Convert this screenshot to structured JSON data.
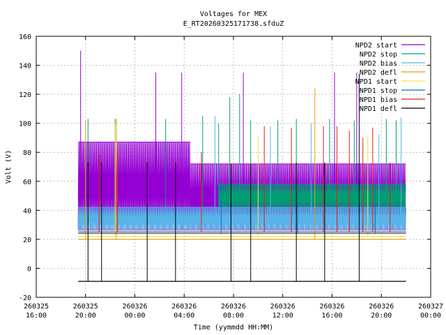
{
  "chart_data": {
    "type": "line",
    "title": "Voltages for MEX",
    "subtitle": "E_RT20260325171738.sfduZ",
    "xlabel": "Time (yymmdd HH:MM)",
    "ylabel": "Volt (V)",
    "ylim": [
      -20,
      160
    ],
    "xlim_hours": [
      16,
      48
    ],
    "grid": true,
    "legend_position": "top-right",
    "y_ticks": [
      "-20",
      "0",
      "20",
      "40",
      "60",
      "80",
      "100",
      "120",
      "140",
      "160"
    ],
    "x_ticks": [
      {
        "date": "260325",
        "time": "16:00"
      },
      {
        "date": "260325",
        "time": "20:00"
      },
      {
        "date": "260326",
        "time": "00:00"
      },
      {
        "date": "260326",
        "time": "04:00"
      },
      {
        "date": "260326",
        "time": "08:00"
      },
      {
        "date": "260326",
        "time": "12:00"
      },
      {
        "date": "260326",
        "time": "16:00"
      },
      {
        "date": "260326",
        "time": "20:00"
      },
      {
        "date": "260327",
        "time": "00:00"
      }
    ],
    "series": [
      {
        "name": "NPD2 start",
        "color": "#9400d3",
        "base_segments": [
          [
            19.4,
            28.5,
            27,
            87
          ],
          [
            28.5,
            46.0,
            27,
            72
          ]
        ],
        "spikes": [
          [
            19.6,
            150
          ],
          [
            25.7,
            135
          ],
          [
            27.8,
            135
          ],
          [
            32.8,
            135
          ],
          [
            40.2,
            135
          ],
          [
            42.0,
            135
          ]
        ]
      },
      {
        "name": "NPD2 stop",
        "color": "#009e73",
        "base_segments": [
          [
            30.8,
            46.0,
            40,
            58
          ]
        ],
        "spikes": [
          [
            20.2,
            103
          ],
          [
            22.4,
            103
          ],
          [
            26.5,
            103
          ],
          [
            29.5,
            105
          ],
          [
            30.8,
            100
          ],
          [
            31.7,
            118
          ],
          [
            32.5,
            120
          ],
          [
            33.4,
            102
          ],
          [
            35.6,
            102
          ],
          [
            37.1,
            103
          ],
          [
            39.8,
            103
          ],
          [
            41.8,
            102
          ],
          [
            44.4,
            103
          ],
          [
            45.2,
            102
          ]
        ]
      },
      {
        "name": "NPD2 bias",
        "color": "#56b4e9",
        "base_segments": [
          [
            19.4,
            46.0,
            26,
            42
          ]
        ],
        "spikes": [
          [
            30.5,
            105
          ],
          [
            35.0,
            98
          ],
          [
            38.3,
            100
          ],
          [
            43.8,
            92
          ],
          [
            45.6,
            104
          ]
        ]
      },
      {
        "name": "NPD2 defl",
        "color": "#e69f00",
        "base_segments": [
          [
            19.4,
            46.0,
            20,
            20
          ]
        ],
        "spikes": [
          [
            20.0,
            102
          ],
          [
            22.5,
            103
          ],
          [
            38.6,
            124
          ]
        ]
      },
      {
        "name": "NPD1 start",
        "color": "#f0e442",
        "base_segments": [
          [
            19.4,
            46.0,
            22,
            22
          ]
        ],
        "spikes": [
          [
            22.4,
            100
          ],
          [
            34.0,
            91
          ],
          [
            42.9,
            92
          ]
        ]
      },
      {
        "name": "NPD1 stop",
        "color": "#0072b2",
        "base_segments": [
          [
            19.4,
            46.0,
            24,
            24
          ]
        ],
        "spikes": [
          [
            31.0,
            58
          ],
          [
            37.2,
            57
          ],
          [
            43.5,
            58
          ]
        ]
      },
      {
        "name": "NPD1 bias",
        "color": "#e51e10",
        "base_segments": [
          [
            19.4,
            46.0,
            25,
            25
          ]
        ],
        "spikes": [
          [
            21.1,
            78
          ],
          [
            22.6,
            79
          ],
          [
            29.4,
            80
          ],
          [
            34.5,
            98
          ],
          [
            36.7,
            97
          ],
          [
            39.3,
            98
          ],
          [
            40.4,
            98
          ],
          [
            41.4,
            95
          ],
          [
            42.5,
            90
          ],
          [
            43.3,
            97
          ],
          [
            44.7,
            73
          ]
        ]
      },
      {
        "name": "NPD1 defl",
        "color": "#000000",
        "base_segments": [
          [
            19.4,
            46.0,
            -9,
            -9
          ]
        ],
        "spikes": [
          [
            20.2,
            73
          ],
          [
            21.3,
            73
          ],
          [
            25.0,
            73
          ],
          [
            27.3,
            73
          ],
          [
            31.8,
            72
          ],
          [
            33.4,
            72
          ],
          [
            37.1,
            73
          ],
          [
            39.4,
            73
          ],
          [
            42.2,
            134
          ]
        ]
      }
    ]
  }
}
